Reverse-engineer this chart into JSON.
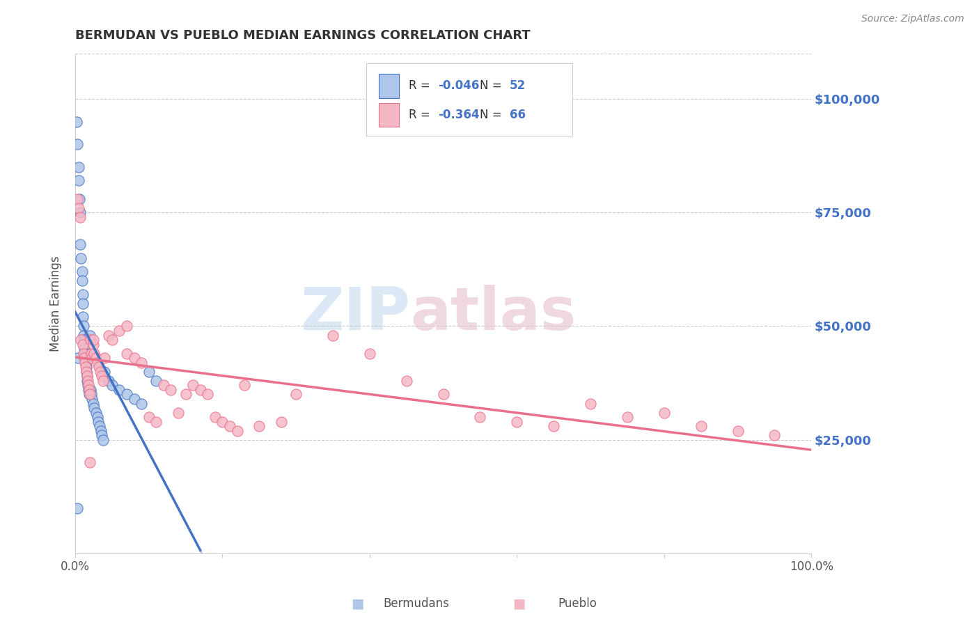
{
  "title": "BERMUDAN VS PUEBLO MEDIAN EARNINGS CORRELATION CHART",
  "source": "Source: ZipAtlas.com",
  "ylabel": "Median Earnings",
  "ytick_labels": [
    "$25,000",
    "$50,000",
    "$75,000",
    "$100,000"
  ],
  "ytick_values": [
    25000,
    50000,
    75000,
    100000
  ],
  "legend_label1": "Bermudans",
  "legend_label2": "Pueblo",
  "legend_R1": "R = ",
  "legend_R1_val": "-0.046",
  "legend_N1": "N = ",
  "legend_N1_val": "52",
  "legend_R2": "R = ",
  "legend_R2_val": "-0.364",
  "legend_N2": "N = ",
  "legend_N2_val": "66",
  "watermark1": "ZIP",
  "watermark2": "atlas",
  "bermudans_color": "#aec6e8",
  "pueblo_color": "#f4b8c5",
  "trend_blue": "#4472c4",
  "trend_pink": "#e8708a",
  "right_axis_color": "#4472c4",
  "bermudans_x": [
    0.002,
    0.003,
    0.004,
    0.005,
    0.005,
    0.006,
    0.007,
    0.007,
    0.008,
    0.009,
    0.009,
    0.01,
    0.01,
    0.01,
    0.011,
    0.011,
    0.012,
    0.012,
    0.013,
    0.013,
    0.014,
    0.015,
    0.015,
    0.016,
    0.016,
    0.017,
    0.018,
    0.019,
    0.02,
    0.021,
    0.022,
    0.023,
    0.025,
    0.026,
    0.028,
    0.03,
    0.031,
    0.033,
    0.035,
    0.036,
    0.038,
    0.04,
    0.045,
    0.05,
    0.06,
    0.07,
    0.08,
    0.09,
    0.1,
    0.11,
    0.003,
    0.02
  ],
  "bermudans_y": [
    95000,
    90000,
    43000,
    85000,
    82000,
    78000,
    75000,
    68000,
    65000,
    62000,
    60000,
    57000,
    55000,
    52000,
    50000,
    48000,
    47000,
    45000,
    44000,
    43000,
    42000,
    41000,
    40000,
    39000,
    38000,
    37000,
    36000,
    35000,
    48000,
    36000,
    35000,
    34000,
    33000,
    32000,
    31000,
    30000,
    29000,
    28000,
    27000,
    26000,
    25000,
    40000,
    38000,
    37000,
    36000,
    35000,
    34000,
    33000,
    40000,
    38000,
    10000,
    44000
  ],
  "pueblo_x": [
    0.003,
    0.005,
    0.007,
    0.008,
    0.01,
    0.011,
    0.012,
    0.013,
    0.014,
    0.015,
    0.016,
    0.017,
    0.018,
    0.019,
    0.02,
    0.021,
    0.022,
    0.023,
    0.025,
    0.026,
    0.028,
    0.03,
    0.032,
    0.034,
    0.036,
    0.038,
    0.04,
    0.045,
    0.05,
    0.06,
    0.07,
    0.08,
    0.09,
    0.1,
    0.11,
    0.12,
    0.13,
    0.14,
    0.15,
    0.16,
    0.17,
    0.18,
    0.19,
    0.2,
    0.21,
    0.22,
    0.23,
    0.25,
    0.28,
    0.3,
    0.35,
    0.4,
    0.45,
    0.5,
    0.55,
    0.6,
    0.65,
    0.7,
    0.75,
    0.8,
    0.85,
    0.9,
    0.95,
    0.02,
    0.025,
    0.07
  ],
  "pueblo_y": [
    78000,
    76000,
    74000,
    47000,
    46000,
    44000,
    43000,
    42000,
    41000,
    40000,
    39000,
    38000,
    37000,
    36000,
    35000,
    47000,
    44000,
    43000,
    46000,
    44000,
    43000,
    42000,
    41000,
    40000,
    39000,
    38000,
    43000,
    48000,
    47000,
    49000,
    44000,
    43000,
    42000,
    30000,
    29000,
    37000,
    36000,
    31000,
    35000,
    37000,
    36000,
    35000,
    30000,
    29000,
    28000,
    27000,
    37000,
    28000,
    29000,
    35000,
    48000,
    44000,
    38000,
    35000,
    30000,
    29000,
    28000,
    33000,
    30000,
    31000,
    28000,
    27000,
    26000,
    20000,
    47000,
    50000
  ],
  "xlim": [
    0.0,
    1.0
  ],
  "ylim": [
    0,
    110000
  ]
}
